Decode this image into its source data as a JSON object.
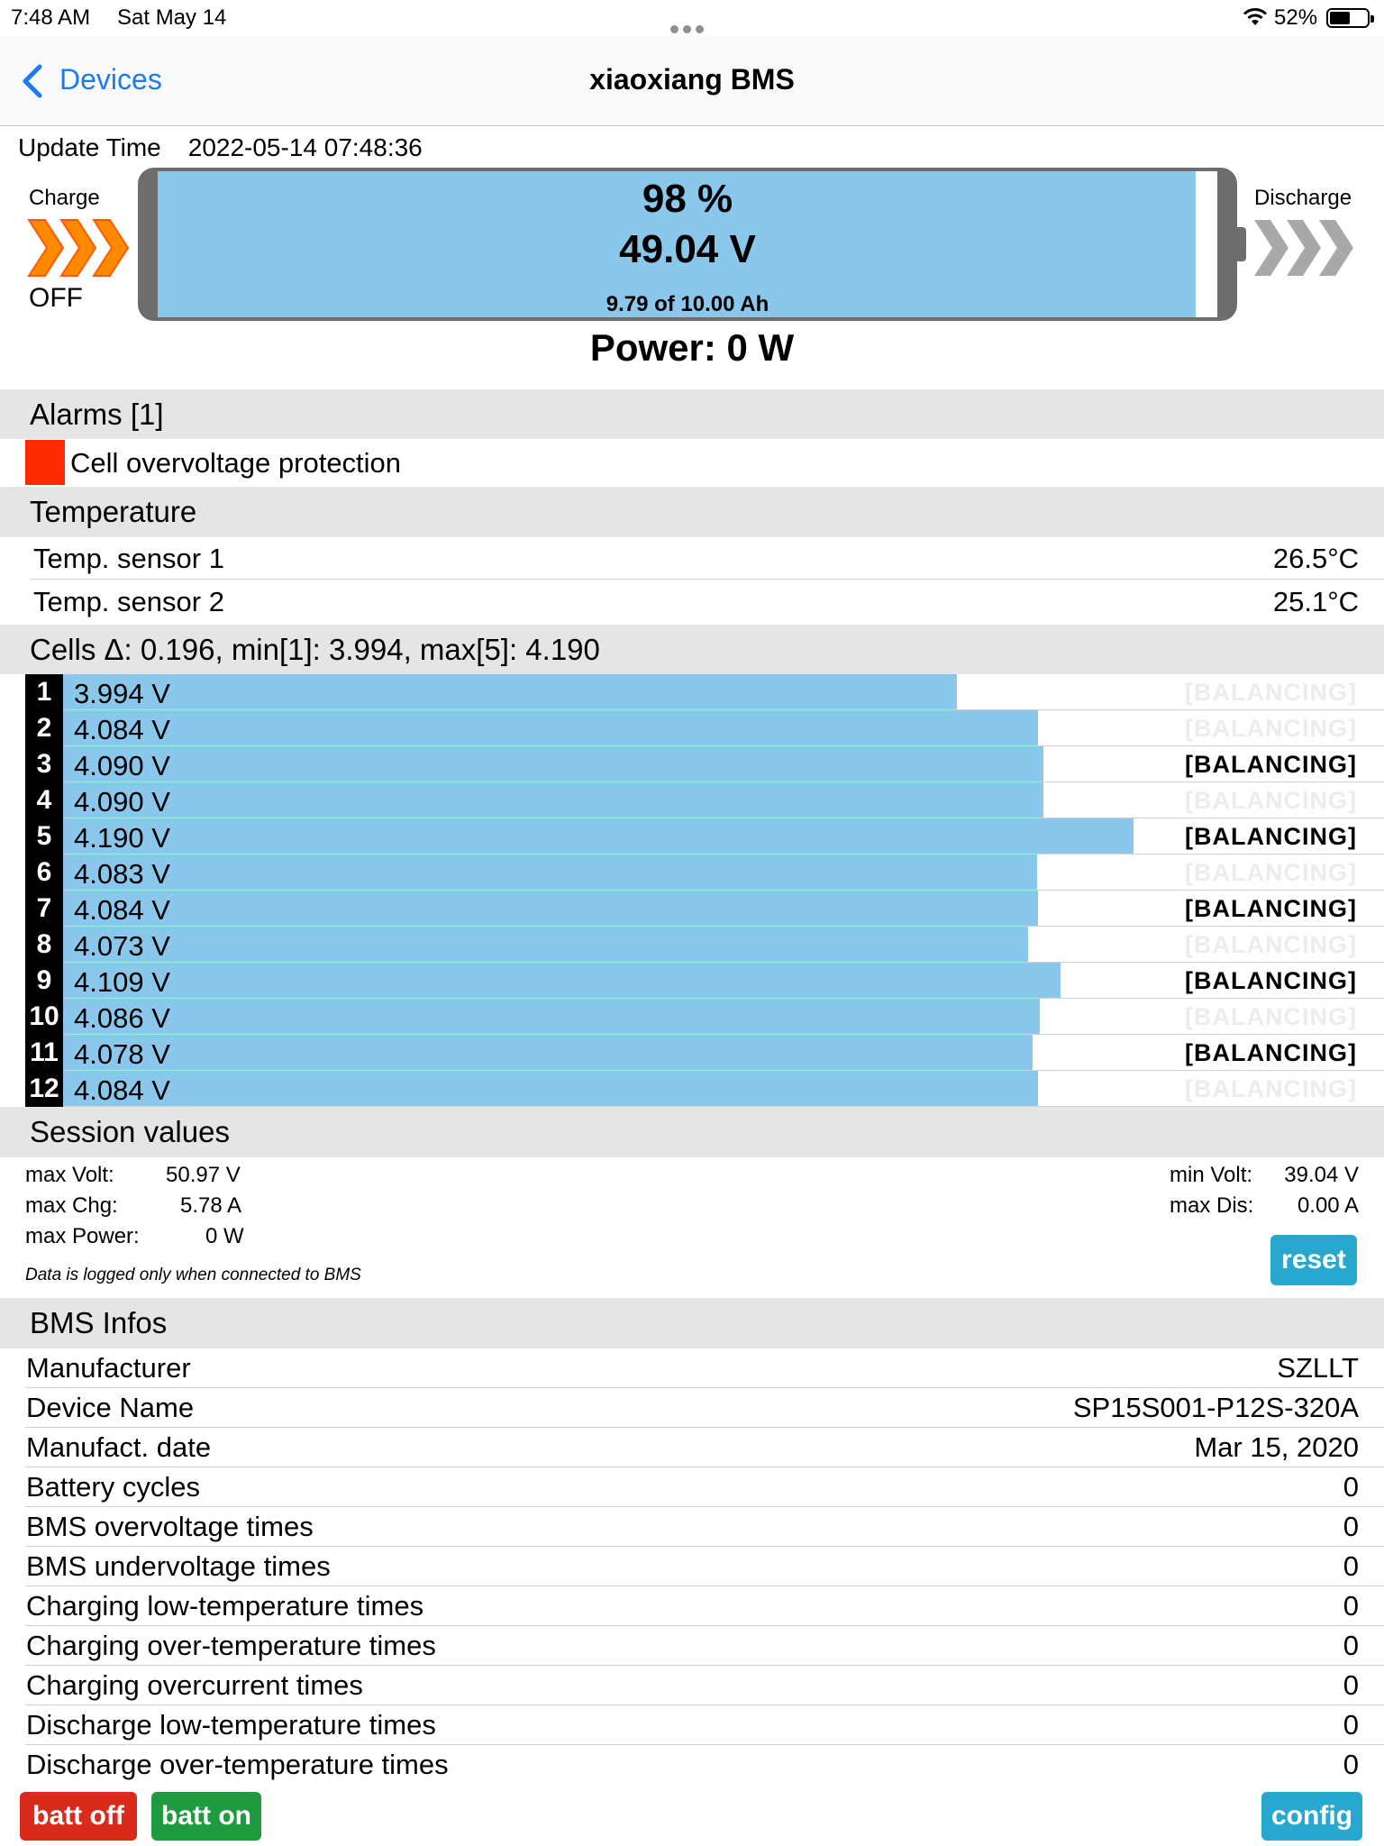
{
  "status_bar": {
    "time": "7:48 AM",
    "date": "Sat May 14",
    "battery_pct": "52%",
    "battery_level": 0.52
  },
  "nav": {
    "back_label": "Devices",
    "title": "xiaoxiang BMS"
  },
  "update": {
    "label": "Update Time",
    "value": "2022-05-14 07:48:36"
  },
  "pack": {
    "charge_label": "Charge",
    "charge_state": "OFF",
    "discharge_label": "Discharge",
    "soc_text": "98 %",
    "soc_fraction": 0.98,
    "voltage": "49.04 V",
    "capacity": "9.79 of 10.00 Ah",
    "power": "Power: 0 W",
    "charge_color": "#ff8a00",
    "discharge_color": "#a8a8a8"
  },
  "alarms": {
    "title": "Alarms [1]",
    "items": [
      "Cell overvoltage protection"
    ],
    "color": "#ff2a00"
  },
  "temperature": {
    "title": "Temperature",
    "rows": [
      {
        "label": "Temp. sensor 1",
        "value": "26.5°C"
      },
      {
        "label": "Temp. sensor 2",
        "value": "25.1°C"
      }
    ]
  },
  "cells": {
    "title": "Cells Δ: 0.196, min[1]: 3.994, max[5]: 4.190",
    "balancing_label": "[BALANCING]",
    "items": [
      {
        "num": "1",
        "voltage": "3.994 V",
        "balancing": false
      },
      {
        "num": "2",
        "voltage": "4.084 V",
        "balancing": false
      },
      {
        "num": "3",
        "voltage": "4.090 V",
        "balancing": true
      },
      {
        "num": "4",
        "voltage": "4.090 V",
        "balancing": false
      },
      {
        "num": "5",
        "voltage": "4.190 V",
        "balancing": true
      },
      {
        "num": "6",
        "voltage": "4.083 V",
        "balancing": false
      },
      {
        "num": "7",
        "voltage": "4.084 V",
        "balancing": true
      },
      {
        "num": "8",
        "voltage": "4.073 V",
        "balancing": false
      },
      {
        "num": "9",
        "voltage": "4.109 V",
        "balancing": true
      },
      {
        "num": "10",
        "voltage": "4.086 V",
        "balancing": false
      },
      {
        "num": "11",
        "voltage": "4.078 V",
        "balancing": true
      },
      {
        "num": "12",
        "voltage": "4.084 V",
        "balancing": false
      }
    ],
    "bar_color": "#8ac7eb"
  },
  "session": {
    "title": "Session values",
    "max_volt_label": "max Volt:",
    "max_volt": "50.97 V",
    "max_chg_label": "max Chg:",
    "max_chg": "5.78 A",
    "max_power_label": "max Power:",
    "max_power": "0 W",
    "min_volt_label": "min Volt:",
    "min_volt": "39.04 V",
    "max_dis_label": "max Dis:",
    "max_dis": "0.00 A",
    "note": "Data is logged only when connected to BMS",
    "reset_label": "reset"
  },
  "bms": {
    "title": "BMS Infos",
    "rows": [
      {
        "label": "Manufacturer",
        "value": "SZLLT"
      },
      {
        "label": "Device Name",
        "value": "SP15S001-P12S-320A"
      },
      {
        "label": "Manufact. date",
        "value": "Mar 15, 2020"
      },
      {
        "label": "Battery cycles",
        "value": "0"
      },
      {
        "label": "BMS overvoltage times",
        "value": "0"
      },
      {
        "label": "BMS undervoltage times",
        "value": "0"
      },
      {
        "label": "Charging low-temperature times",
        "value": "0"
      },
      {
        "label": "Charging over-temperature times",
        "value": "0"
      },
      {
        "label": "Charging overcurrent times",
        "value": "0"
      },
      {
        "label": "Discharge low-temperature times",
        "value": "0"
      },
      {
        "label": "Discharge over-temperature times",
        "value": "0"
      }
    ]
  },
  "buttons": {
    "batt_off": "batt off",
    "batt_on": "batt on",
    "config": "config"
  },
  "colors": {
    "accent": "#1a7cf0",
    "button_teal": "#28a8cf",
    "button_red": "#d92b1c",
    "button_green": "#1f9a3f",
    "section_bg": "#e5e5e5"
  }
}
